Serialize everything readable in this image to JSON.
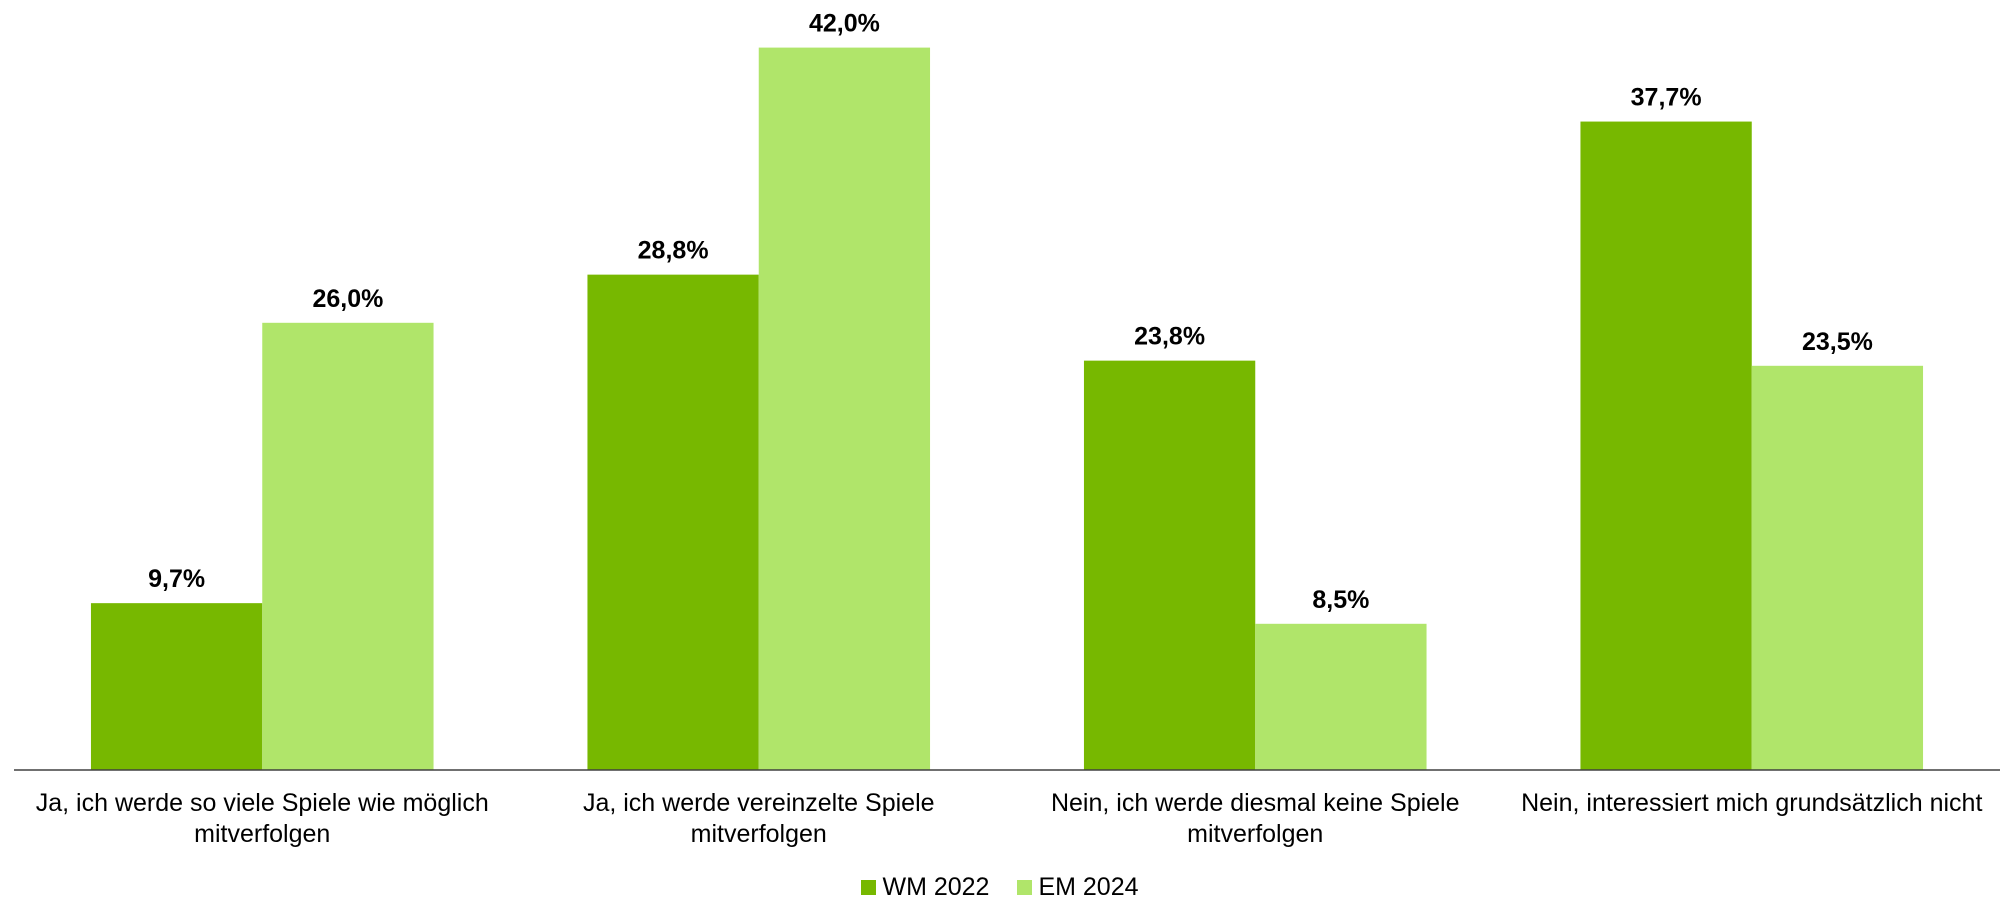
{
  "chart_data": {
    "type": "bar",
    "categories": [
      "Ja, ich werde so viele Spiele wie möglich mitverfolgen",
      "Ja, ich werde vereinzelte Spiele mitverfolgen",
      "Nein, ich werde diesmal keine Spiele mitverfolgen",
      "Nein, interessiert mich grundsätzlich nicht"
    ],
    "series": [
      {
        "name": "WM 2022",
        "color": "#77b800",
        "values": [
          9.7,
          28.8,
          23.8,
          37.7
        ],
        "value_labels": [
          "9,7%",
          "28,8%",
          "23,8%",
          "37,7%"
        ]
      },
      {
        "name": "EM 2024",
        "color": "#b0e56a",
        "values": [
          26.0,
          42.0,
          8.5,
          23.5
        ],
        "value_labels": [
          "26,0%",
          "42,0%",
          "8,5%",
          "23,5%"
        ]
      }
    ],
    "ylim": [
      0,
      45
    ],
    "legend": "bottom"
  }
}
